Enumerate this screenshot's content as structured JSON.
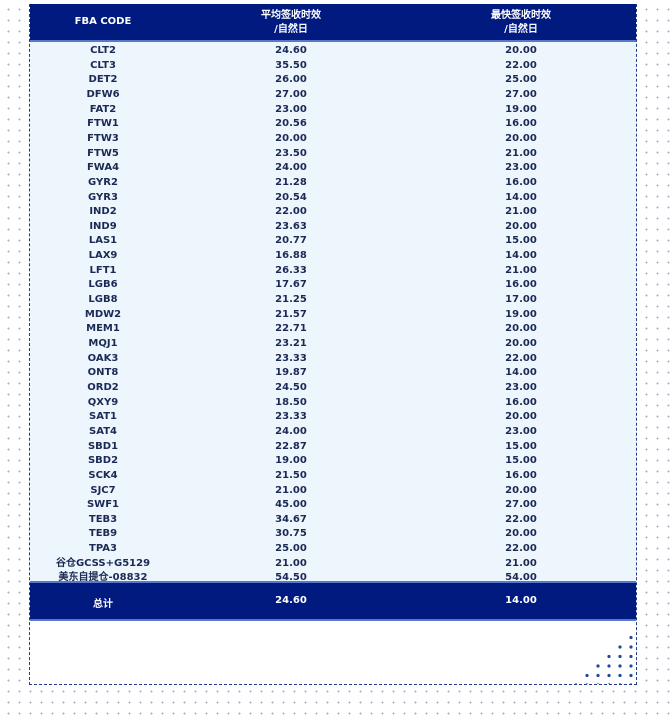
{
  "header": {
    "code": "FBA CODE",
    "avg_line1": "平均签收时效",
    "avg_line2": "/自然日",
    "fast_line1": "最快签收时效",
    "fast_line2": "/自然日"
  },
  "rows": [
    [
      "CLT2",
      "24.60",
      "20.00"
    ],
    [
      "CLT3",
      "35.50",
      "22.00"
    ],
    [
      "DET2",
      "26.00",
      "25.00"
    ],
    [
      "DFW6",
      "27.00",
      "27.00"
    ],
    [
      "FAT2",
      "23.00",
      "19.00"
    ],
    [
      "FTW1",
      "20.56",
      "16.00"
    ],
    [
      "FTW3",
      "20.00",
      "20.00"
    ],
    [
      "FTW5",
      "23.50",
      "21.00"
    ],
    [
      "FWA4",
      "24.00",
      "23.00"
    ],
    [
      "GYR2",
      "21.28",
      "16.00"
    ],
    [
      "GYR3",
      "20.54",
      "14.00"
    ],
    [
      "IND2",
      "22.00",
      "21.00"
    ],
    [
      "IND9",
      "23.63",
      "20.00"
    ],
    [
      "LAS1",
      "20.77",
      "15.00"
    ],
    [
      "LAX9",
      "16.88",
      "14.00"
    ],
    [
      "LFT1",
      "26.33",
      "21.00"
    ],
    [
      "LGB6",
      "17.67",
      "16.00"
    ],
    [
      "LGB8",
      "21.25",
      "17.00"
    ],
    [
      "MDW2",
      "21.57",
      "19.00"
    ],
    [
      "MEM1",
      "22.71",
      "20.00"
    ],
    [
      "MQJ1",
      "23.21",
      "20.00"
    ],
    [
      "OAK3",
      "23.33",
      "22.00"
    ],
    [
      "ONT8",
      "19.87",
      "14.00"
    ],
    [
      "ORD2",
      "24.50",
      "23.00"
    ],
    [
      "QXY9",
      "18.50",
      "16.00"
    ],
    [
      "SAT1",
      "23.33",
      "20.00"
    ],
    [
      "SAT4",
      "24.00",
      "23.00"
    ],
    [
      "SBD1",
      "22.87",
      "15.00"
    ],
    [
      "SBD2",
      "19.00",
      "15.00"
    ],
    [
      "SCK4",
      "21.50",
      "16.00"
    ],
    [
      "SJC7",
      "21.00",
      "20.00"
    ],
    [
      "SWF1",
      "45.00",
      "27.00"
    ],
    [
      "TEB3",
      "34.67",
      "22.00"
    ],
    [
      "TEB9",
      "30.75",
      "20.00"
    ],
    [
      "TPA3",
      "25.00",
      "22.00"
    ],
    [
      "谷仓GCSS+G5129",
      "21.00",
      "21.00"
    ],
    [
      "美东自提仓-08832",
      "54.50",
      "54.00"
    ]
  ],
  "total": {
    "label": "总计",
    "avg": "24.60",
    "fast": "14.00"
  },
  "colors": {
    "header": "#001a80",
    "body": "#eef6fd",
    "text": "#1b2a55"
  }
}
